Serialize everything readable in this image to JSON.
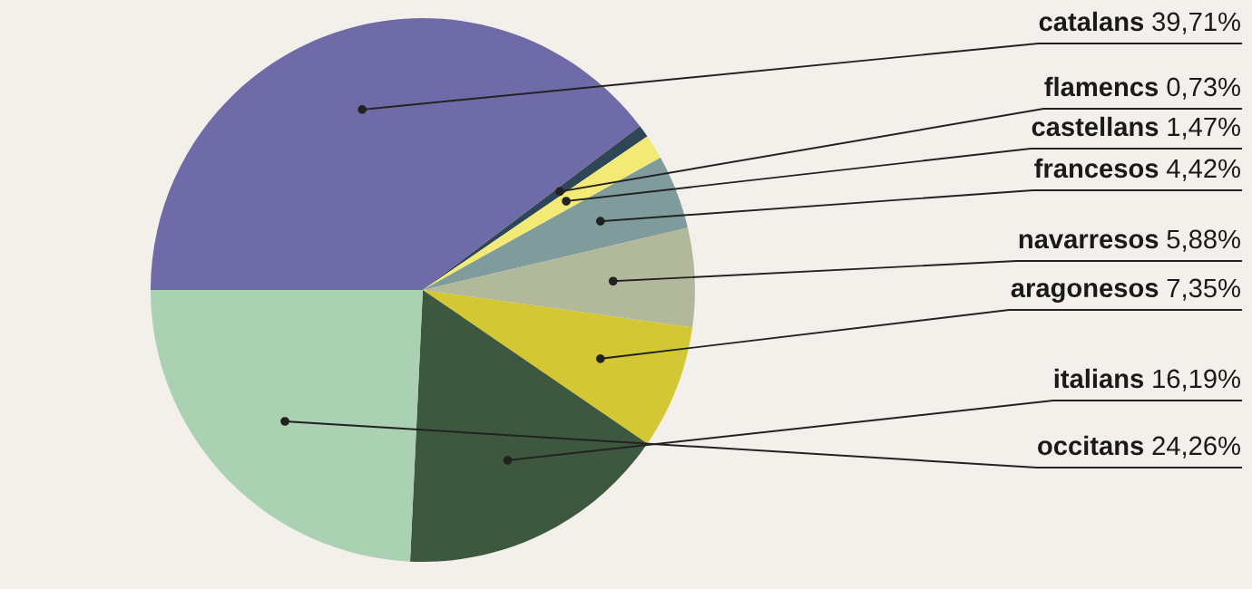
{
  "chart_data": {
    "type": "pie",
    "categories": [
      "catalans",
      "flamencs",
      "castellans",
      "francesos",
      "navarresos",
      "aragonesos",
      "italians",
      "occitans"
    ],
    "values": [
      39.71,
      0.73,
      1.47,
      4.42,
      5.88,
      7.35,
      16.19,
      24.26
    ],
    "value_labels": [
      "39,71%",
      "0,73%",
      "1,47%",
      "4,42%",
      "5,88%",
      "7,35%",
      "16,19%",
      "24,26%"
    ],
    "colors": [
      "#6f6ba9",
      "#2e4656",
      "#f2ea74",
      "#7f9b9c",
      "#b2b99b",
      "#d3c734",
      "#3e5840",
      "#a9d1b2"
    ]
  }
}
